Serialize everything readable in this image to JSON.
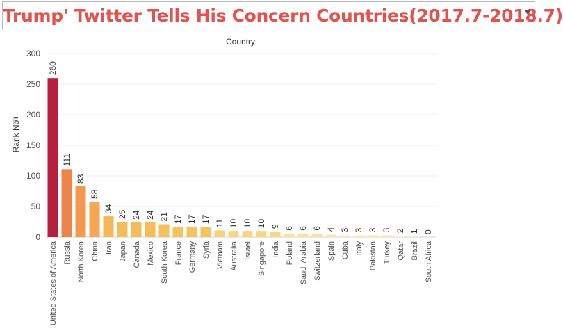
{
  "title": "Trump' Twitter Tells His Concern Countries(2017.7-2018.7)",
  "chart_data": {
    "type": "bar",
    "column_header": "Country",
    "ylabel": "Rank No",
    "ylim": [
      0,
      300
    ],
    "yticks": [
      0,
      50,
      100,
      150,
      200,
      250,
      300
    ],
    "grid": true,
    "legend": "none",
    "categories": [
      "United States of America",
      "Russia",
      "North Korea",
      "China",
      "Iran",
      "Japan",
      "Canada",
      "Mexico",
      "South Korea",
      "France",
      "Germany",
      "Syria",
      "Vietnam",
      "Australia",
      "Israel",
      "Singapore",
      "India",
      "Poland",
      "Saudi Arabia",
      "Switzerland",
      "Spain",
      "Cuba",
      "Italy",
      "Pakistan",
      "Turkey",
      "Qatar",
      "Brazil",
      "South Africa"
    ],
    "values": [
      260,
      111,
      83,
      58,
      34,
      25,
      24,
      24,
      21,
      17,
      17,
      17,
      11,
      10,
      10,
      10,
      9,
      6,
      6,
      6,
      4,
      3,
      3,
      3,
      3,
      2,
      1,
      0
    ],
    "color_scale": {
      "min": "#fff3c4",
      "mid1": "#f5c35b",
      "mid2": "#f79a4f",
      "max": "#b81e3e"
    }
  }
}
